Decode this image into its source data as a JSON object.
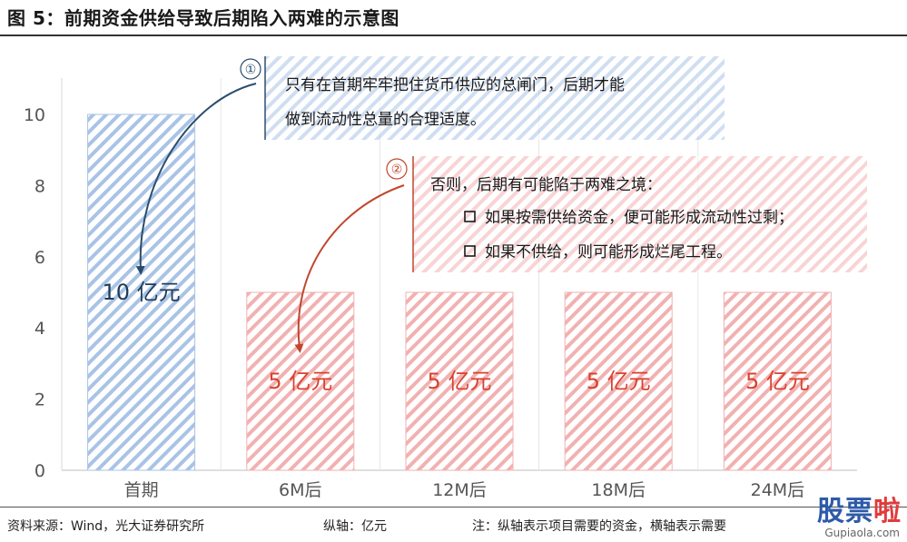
{
  "title": "图 5：前期资金供给导致后期陷入两难的示意图",
  "footer": {
    "source": "资料来源：Wind，光大证券研究所",
    "unit": "纵轴：亿元",
    "note": "注：纵轴表示项目需要的资金，横轴表示需要"
  },
  "watermark": {
    "main": "股票",
    "accent": "啦",
    "sub": "Gupiaola.com"
  },
  "colors": {
    "blue_stripe": "#a9c3e6",
    "red_stripe": "#f2b1b1",
    "blue_text": "#1f3b5c",
    "red_text": "#d9412f",
    "blue_arrow": "#2a4d6e",
    "red_arrow": "#c0462e",
    "axis_text": "#555555"
  },
  "annotations": [
    {
      "number": "①",
      "color": "blue",
      "lines": [
        "只有在首期牢牢把住货币供应的总闸门，后期才能",
        "做到流动性总量的合理适度。"
      ]
    },
    {
      "number": "②",
      "color": "red",
      "lines": [
        "否则，后期有可能陷于两难之境：",
        "如果按需供给资金，便可能形成流动性过剩；",
        "如果不供给，则可能形成烂尾工程。"
      ]
    }
  ],
  "chart_data": {
    "type": "bar",
    "title": "",
    "xlabel": "",
    "ylabel": "",
    "categories": [
      "首期",
      "6M后",
      "12M后",
      "18M后",
      "24M后"
    ],
    "values": [
      10,
      5,
      5,
      5,
      5
    ],
    "data_labels": [
      "10 亿元",
      "5 亿元",
      "5 亿元",
      "5 亿元",
      "5 亿元"
    ],
    "bar_colors": [
      "blue",
      "red",
      "red",
      "red",
      "red"
    ],
    "ylim": [
      0,
      10
    ],
    "yticks": [
      0,
      2,
      4,
      6,
      8,
      10
    ],
    "grid": "vertical separators between categories",
    "legend": "none"
  }
}
